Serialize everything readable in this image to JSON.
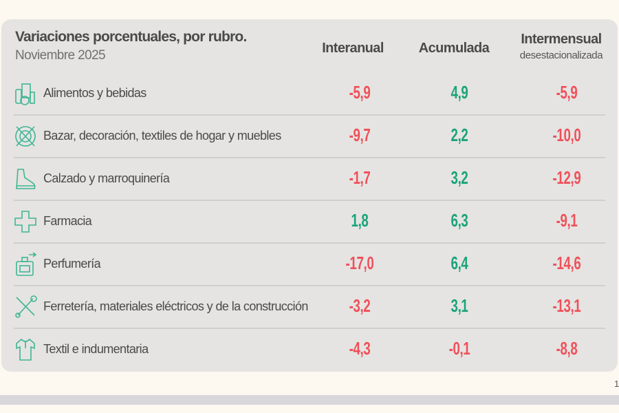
{
  "title": "Variaciones porcentuales, por rubro.",
  "subtitle": "Noviembre 2025",
  "columns": {
    "interanual": "Interanual",
    "acumulada": "Acumulada",
    "intermensual": "Intermensual",
    "intermensual_sub": "desestacionalizada"
  },
  "rows": [
    {
      "label": "Alimentos y bebidas",
      "icon": "grocery-icon",
      "interanual": "-5,9",
      "acumulada": "4,9",
      "intermensual": "-5,9"
    },
    {
      "label": "Bazar, decoración, textiles de hogar y muebles",
      "icon": "tableware-icon",
      "interanual": "-9,7",
      "acumulada": "2,2",
      "intermensual": "-10,0"
    },
    {
      "label": "Calzado y marroquinería",
      "icon": "shoe-icon",
      "interanual": "-1,7",
      "acumulada": "3,2",
      "intermensual": "-12,9"
    },
    {
      "label": "Farmacia",
      "icon": "pharmacy-cross-icon",
      "interanual": "1,8",
      "acumulada": "6,3",
      "intermensual": "-9,1"
    },
    {
      "label": "Perfumería",
      "icon": "perfume-icon",
      "interanual": "-17,0",
      "acumulada": "6,4",
      "intermensual": "-14,6"
    },
    {
      "label": "Ferretería, materiales eléctricos y de la construcción",
      "icon": "tools-icon",
      "interanual": "-3,2",
      "acumulada": "3,1",
      "intermensual": "-13,1"
    },
    {
      "label": "Textil e indumentaria",
      "icon": "shirt-icon",
      "interanual": "-4,3",
      "acumulada": "-0,1",
      "intermensual": "-8,8"
    }
  ],
  "page_number": "1",
  "colors": {
    "negative": "#f0505a",
    "positive": "#1aa37a",
    "icon": "#3fb594"
  }
}
